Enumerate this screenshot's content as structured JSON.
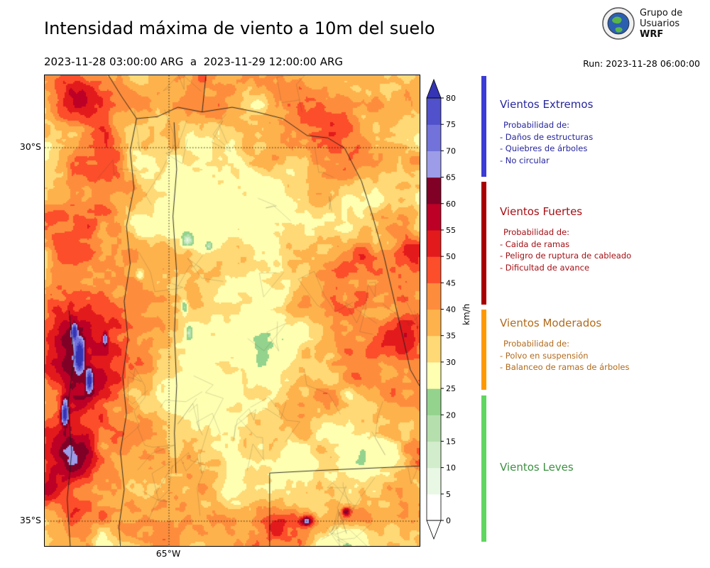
{
  "header": {
    "title": "Intensidad máxima de viento a 10m del suelo",
    "date_range": "2023-11-28 03:00:00 ARG  a  2023-11-29 12:00:00 ARG",
    "run_label": "Run: 2023-11-28 06:00:00",
    "logo": {
      "line1": "Grupo de",
      "line2": "Usuarios",
      "line3": "WRF"
    }
  },
  "map": {
    "lat_ticks": [
      "30°S",
      "35°S"
    ],
    "lon_ticks": [
      "65°W"
    ]
  },
  "colorbar": {
    "unit": "km/h",
    "tick_values": [
      0,
      5,
      10,
      15,
      20,
      25,
      30,
      35,
      40,
      45,
      50,
      55,
      60,
      65,
      70,
      75,
      80
    ],
    "bin_colors": [
      "#ffffff",
      "#e9f7e5",
      "#d2edcb",
      "#b5e0ad",
      "#94d38d",
      "#ffffb2",
      "#fed976",
      "#feb24c",
      "#fd8d3c",
      "#fc4e2a",
      "#e31a1c",
      "#bd0026",
      "#800026",
      "#9c9ce8",
      "#7272da",
      "#5151cb"
    ],
    "over_color": "#3434b4"
  },
  "legend": {
    "sections": [
      {
        "title": "Vientos Extremos",
        "text_color": "#26269e",
        "bar_color": "#3b3bd6",
        "items": [
          "Probabilidad de:",
          "- Daños de estructuras",
          "- Quiebres de árboles",
          "- No circular"
        ]
      },
      {
        "title": "Vientos Fuertes",
        "text_color": "#a50f15",
        "bar_color": "#a80000",
        "items": [
          "Probabilidad de:",
          "- Caida de ramas",
          "- Peligro de ruptura de cableado",
          "- Dificultad de avance"
        ]
      },
      {
        "title": "Vientos Moderados",
        "text_color": "#b26a1b",
        "bar_color": "#ff9900",
        "items": [
          "Probabilidad de:",
          "- Polvo en suspensión",
          "- Balanceo de ramas de árboles"
        ]
      },
      {
        "title": "Vientos Leves",
        "text_color": "#3d9142",
        "bar_color": "#5fd65f",
        "items": []
      }
    ]
  }
}
